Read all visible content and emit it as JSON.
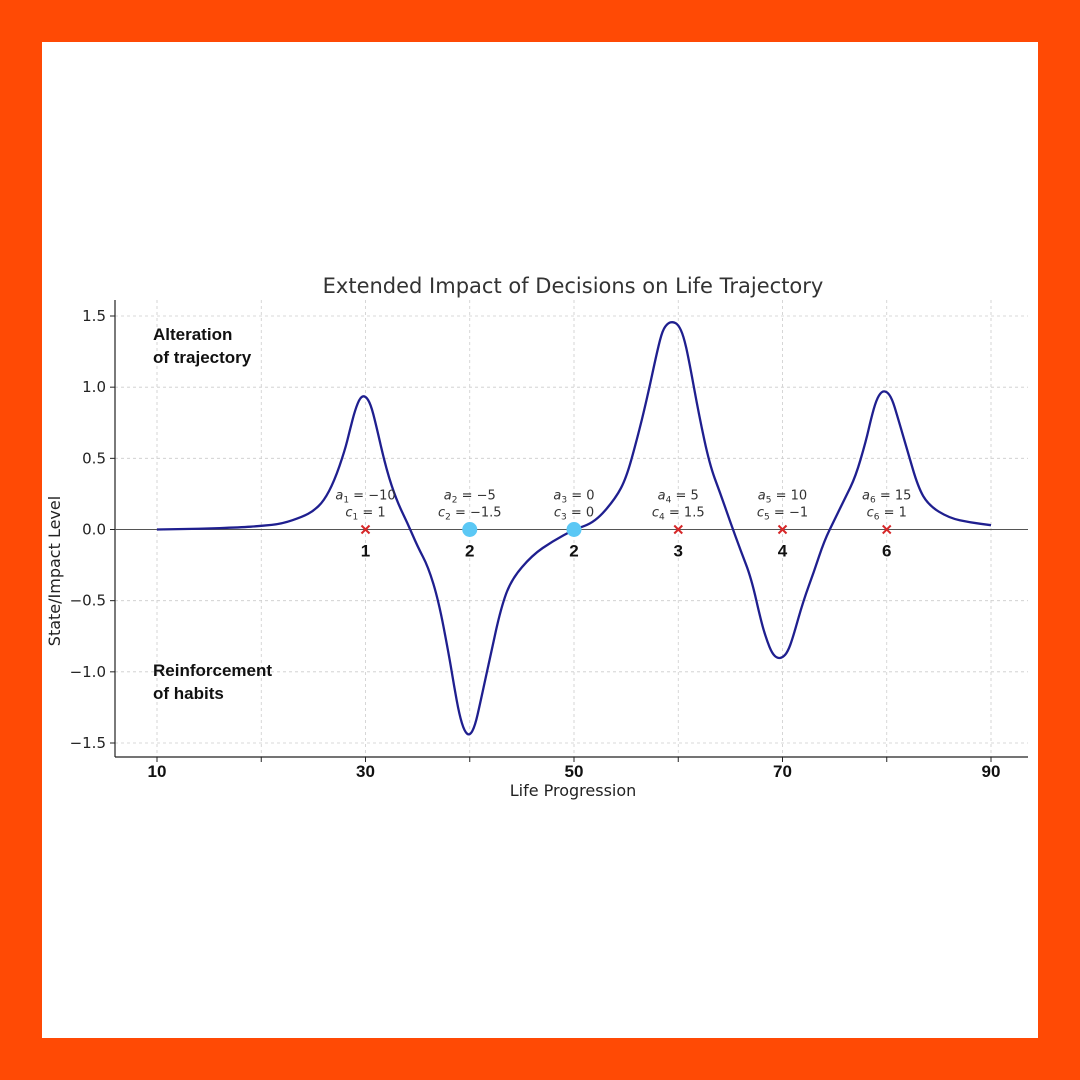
{
  "colors": {
    "border": "#FF4A05",
    "curve": "#1F1F8F",
    "marker_x": "#D62728",
    "marker_dot": "#5BC8F5",
    "grid": "#CCCCCC"
  },
  "chart_data": {
    "type": "line",
    "title": "Extended Impact of Decisions on Life Trajectory",
    "xlabel": "Life Progression",
    "ylabel": "State/Impact Level",
    "xlim": [
      10,
      90
    ],
    "ylim": [
      -1.6,
      1.6
    ],
    "grid": true,
    "x_ticks": [
      10,
      30,
      50,
      70,
      90
    ],
    "x_tick_labels": [
      "10",
      "30",
      "50",
      "70",
      "90"
    ],
    "x_minor_grid": [
      20,
      40,
      60,
      80
    ],
    "y_ticks": [
      -1.5,
      -1.0,
      -0.5,
      0.0,
      0.5,
      1.0,
      1.5
    ],
    "y_tick_labels": [
      "−1.5",
      "−1.0",
      "−0.5",
      "0.0",
      "0.5",
      "1.0",
      "1.5"
    ],
    "annotations": [
      {
        "text": "Alteration",
        "x": 10,
        "y": 1.33
      },
      {
        "text": "of trajectory",
        "x": 10,
        "y": 1.17
      },
      {
        "text": "Reinforcement",
        "x": 10,
        "y": -1.03
      },
      {
        "text": "of habits",
        "x": 10,
        "y": -1.19
      }
    ],
    "points": [
      {
        "x": 30,
        "y": 0,
        "marker": "x",
        "label": "1",
        "a_value": "−10",
        "c_value": "1"
      },
      {
        "x": 40,
        "y": 0,
        "marker": "dot",
        "label": "2",
        "a_value": "−5",
        "c_value": "−1.5"
      },
      {
        "x": 50,
        "y": 0,
        "marker": "dot",
        "label": "2",
        "a_value": "0",
        "c_value": "0"
      },
      {
        "x": 60,
        "y": 0,
        "marker": "x",
        "label": "3",
        "a_value": "5",
        "c_value": "1.5"
      },
      {
        "x": 70,
        "y": 0,
        "marker": "x",
        "label": "4",
        "a_value": "10",
        "c_value": "−1"
      },
      {
        "x": 80,
        "y": 0,
        "marker": "x",
        "label": "6",
        "a_value": "15",
        "c_value": "1"
      }
    ],
    "series": [
      {
        "x": [
          10,
          14,
          18,
          20,
          22,
          24,
          25,
          26,
          27,
          28,
          28.5,
          29,
          29.5,
          30,
          30.5,
          31,
          32,
          33,
          34,
          35,
          36,
          37,
          38,
          38.5,
          39,
          39.5,
          40,
          40.5,
          41,
          42,
          43,
          44,
          46,
          48,
          50,
          52,
          54,
          55,
          56,
          57,
          58,
          58.5,
          59,
          59.5,
          60,
          60.5,
          61,
          62,
          63,
          64,
          65,
          66,
          67,
          68,
          68.5,
          69,
          69.5,
          70,
          70.5,
          71,
          72,
          73,
          74,
          75,
          76,
          77,
          78,
          78.5,
          79,
          79.5,
          80,
          80.5,
          81,
          82,
          83,
          84,
          86,
          88,
          90
        ],
        "y": [
          0.0,
          0.005,
          0.015,
          0.025,
          0.04,
          0.09,
          0.13,
          0.2,
          0.34,
          0.55,
          0.7,
          0.84,
          0.93,
          0.94,
          0.88,
          0.74,
          0.42,
          0.2,
          0.05,
          -0.12,
          -0.26,
          -0.5,
          -0.88,
          -1.1,
          -1.3,
          -1.42,
          -1.45,
          -1.38,
          -1.22,
          -0.88,
          -0.55,
          -0.35,
          -0.18,
          -0.08,
          0.0,
          0.05,
          0.22,
          0.36,
          0.62,
          0.92,
          1.26,
          1.4,
          1.45,
          1.46,
          1.44,
          1.36,
          1.2,
          0.8,
          0.46,
          0.26,
          0.05,
          -0.15,
          -0.34,
          -0.66,
          -0.78,
          -0.87,
          -0.905,
          -0.9,
          -0.86,
          -0.76,
          -0.5,
          -0.3,
          -0.08,
          0.07,
          0.22,
          0.37,
          0.62,
          0.78,
          0.91,
          0.97,
          0.97,
          0.92,
          0.8,
          0.55,
          0.3,
          0.17,
          0.08,
          0.05,
          0.03
        ]
      }
    ]
  }
}
